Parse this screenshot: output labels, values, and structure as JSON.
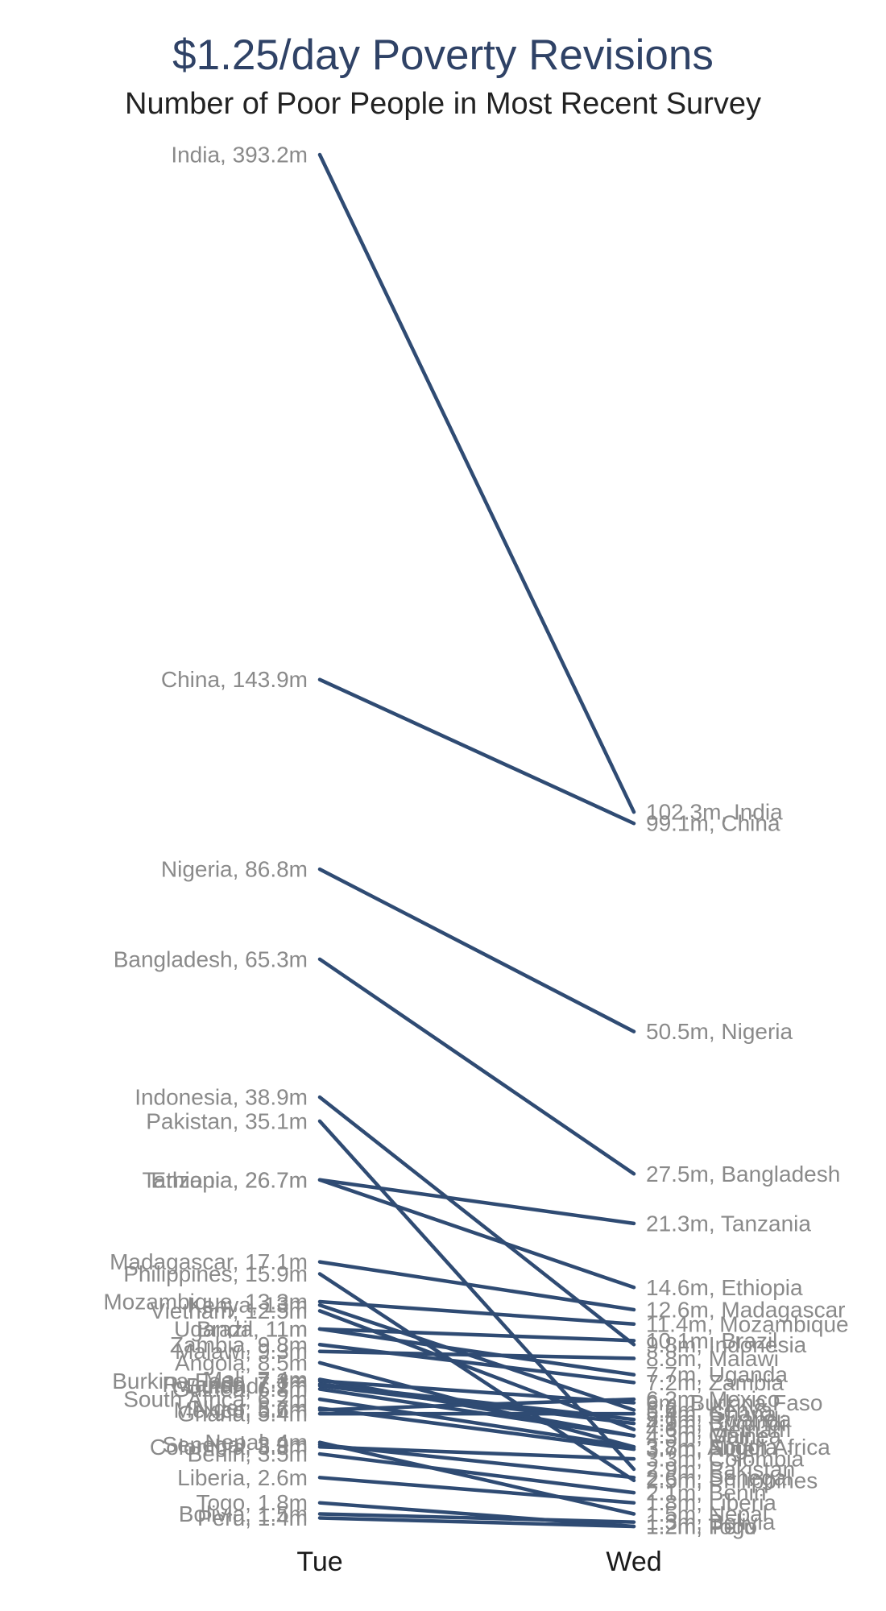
{
  "title": "$1.25/day Poverty Revisions",
  "subtitle": "Number of Poor People in Most Recent Survey",
  "chart_data": {
    "type": "line",
    "title": "$1.25/day Poverty Revisions",
    "subtitle": "Number of Poor People in Most Recent Survey",
    "categories": [
      "Tue",
      "Wed"
    ],
    "unit": "m",
    "line_color": "#2f4b73",
    "series": [
      {
        "name": "India",
        "values": [
          393.2,
          102.3
        ],
        "left_label": "India, 393.2m",
        "right_label": "102.3m, India"
      },
      {
        "name": "China",
        "values": [
          143.9,
          99.1
        ],
        "left_label": "China, 143.9m",
        "right_label": "99.1m, China"
      },
      {
        "name": "Nigeria",
        "values": [
          86.8,
          50.5
        ],
        "left_label": "Nigeria, 86.8m",
        "right_label": "50.5m, Nigeria"
      },
      {
        "name": "Bangladesh",
        "values": [
          65.3,
          27.5
        ],
        "left_label": "Bangladesh, 65.3m",
        "right_label": "27.5m, Bangladesh"
      },
      {
        "name": "Indonesia",
        "values": [
          38.9,
          9.8
        ],
        "left_label": "Indonesia, 38.9m",
        "right_label": "9.8m, Indonesia"
      },
      {
        "name": "Pakistan",
        "values": [
          35.1,
          2.9
        ],
        "left_label": "Pakistan, 35.1m",
        "right_label": "2.9m, Pakistan"
      },
      {
        "name": "Tanzania",
        "values": [
          26.7,
          21.3
        ],
        "left_label": "Tanzania, 26.7m",
        "right_label": "21.3m, Tanzania"
      },
      {
        "name": "Ethiopia",
        "values": [
          26.7,
          14.6
        ],
        "left_label": "Ethiopia, 26.7m",
        "right_label": "14.6m, Ethiopia"
      },
      {
        "name": "Madagascar",
        "values": [
          17.1,
          12.6
        ],
        "left_label": "Madagascar, 17.1m",
        "right_label": "12.6m, Madagascar"
      },
      {
        "name": "Philippines",
        "values": [
          15.9,
          2.5
        ],
        "left_label": "Philippines, 15.9m",
        "right_label": "2.5m, Philippines"
      },
      {
        "name": "Mozambique",
        "values": [
          13.3,
          11.4
        ],
        "left_label": "Mozambique, 13.3m",
        "right_label": "11.4m, Mozambique"
      },
      {
        "name": "Kenya",
        "values": [
          13.0,
          5.6
        ],
        "left_label": "Kenya, 13m",
        "right_label": "5.6m, Kenya"
      },
      {
        "name": "Vietnam",
        "values": [
          12.5,
          4.6
        ],
        "left_label": "Vietnam, 12.5m",
        "right_label": "4.6m, Vietnam"
      },
      {
        "name": "Brazil",
        "values": [
          11.0,
          10.1
        ],
        "left_label": "Brazil, 11m",
        "right_label": "10.1m, Brazil"
      },
      {
        "name": "Uganda",
        "values": [
          11.0,
          7.7
        ],
        "left_label": "Uganda, 11m",
        "right_label": "7.7m, Uganda"
      },
      {
        "name": "Zambia",
        "values": [
          9.8,
          7.2
        ],
        "left_label": "Zambia, 9.8m",
        "right_label": "7.2m, Zambia"
      },
      {
        "name": "Malawi",
        "values": [
          9.3,
          8.8
        ],
        "left_label": "Malawi, 9.3m",
        "right_label": "8.8m, Malawi"
      },
      {
        "name": "Angola",
        "values": [
          8.5,
          3.8
        ],
        "left_label": "Angola, 8.5m",
        "right_label": "3.8m, Angola"
      },
      {
        "name": "Mali",
        "values": [
          7.4,
          4.3
        ],
        "left_label": "Mali, 7.4m",
        "right_label": "4.3m, Mali"
      },
      {
        "name": "Burkina Faso",
        "values": [
          7.3,
          6.0
        ],
        "left_label": "Burkina Faso, 7.3m",
        "right_label": "6m, Burkina Faso"
      },
      {
        "name": "Rwanda",
        "values": [
          7.1,
          5.1
        ],
        "left_label": "Rwanda, 7.1m",
        "right_label": "5.1m, Rwanda"
      },
      {
        "name": "Burundi",
        "values": [
          7.0,
          4.9
        ],
        "left_label": "Burundi, 7m",
        "right_label": "4.9m, Burundi"
      },
      {
        "name": "Guinea",
        "values": [
          6.8,
          4.3
        ],
        "left_label": "Guinea, 6.8m",
        "right_label": "4.3m, Guinea"
      },
      {
        "name": "South Africa",
        "values": [
          6.2,
          3.8
        ],
        "left_label": "South Africa, 6.2m",
        "right_label": "3.8m, South Africa"
      },
      {
        "name": "Niger",
        "values": [
          5.7,
          3.7
        ],
        "left_label": "Niger, 5.7m",
        "right_label": "3.7m, Niger"
      },
      {
        "name": "Mexico",
        "values": [
          5.6,
          6.2
        ],
        "left_label": "Mexico, 5.6m",
        "right_label": "6.2m, Mexico"
      },
      {
        "name": "Ghana",
        "values": [
          5.4,
          5.4
        ],
        "left_label": "Ghana, 5.4m",
        "right_label": "5.4m, Ghana"
      },
      {
        "name": "Nepal",
        "values": [
          4.0,
          1.5
        ],
        "left_label": "Nepal, 4m",
        "right_label": "1.5m, Nepal"
      },
      {
        "name": "Senegal",
        "values": [
          3.9,
          2.6
        ],
        "left_label": "Senegal, 3.9m",
        "right_label": "2.6m, Senegal"
      },
      {
        "name": "Colombia",
        "values": [
          3.8,
          3.3
        ],
        "left_label": "Colombia, 3.8m",
        "right_label": "3.3m, Colombia"
      },
      {
        "name": "Benin",
        "values": [
          3.5,
          2.1
        ],
        "left_label": "Benin, 3.5m",
        "right_label": "2.1m, Benin"
      },
      {
        "name": "Liberia",
        "values": [
          2.6,
          1.8
        ],
        "left_label": "Liberia, 2.6m",
        "right_label": "1.8m, Liberia"
      },
      {
        "name": "Togo",
        "values": [
          1.8,
          1.2
        ],
        "left_label": "Togo, 1.8m",
        "right_label": "1.2m, Togo"
      },
      {
        "name": "Bolivia",
        "values": [
          1.5,
          1.3
        ],
        "left_label": "Bolivia, 1.5m",
        "right_label": "1.3m, Bolivia"
      },
      {
        "name": "Peru",
        "values": [
          1.4,
          1.2
        ],
        "left_label": "Peru, 1.4m",
        "right_label": "1.2m, Peru"
      }
    ]
  }
}
